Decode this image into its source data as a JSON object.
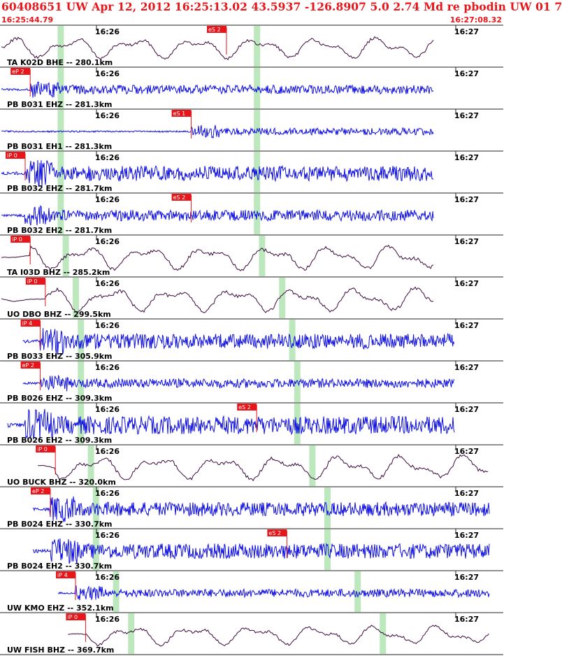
{
  "header": {
    "title": "60408651 UW Apr 12, 2012 16:25:13.02   43.5937 -126.8907  5.0 2.74 Md re pbodin UW 01    7",
    "start_time": "16:25:44.79",
    "end_time": "16:27:08.32"
  },
  "minute_labels": [
    "16:26",
    "16:27"
  ],
  "colors": {
    "header_text": "#e8161a",
    "pick_flag": "#e8161a",
    "trace_broadband": "#3a0a3a",
    "trace_shortperiod": "#1010e0",
    "window_marker": "#bde8bd",
    "grid": "#222222"
  },
  "traces": [
    {
      "label": "TA K02D BHE -- 280.1km",
      "kind": "broadband",
      "pick": {
        "label": "eS 2",
        "time": 0.45
      },
      "first_arrival": 0.0,
      "windows": [
        0.12,
        0.51
      ],
      "amp": 0.7
    },
    {
      "label": "PB B031 EHZ -- 281.3km",
      "kind": "shortperiod",
      "pick": {
        "label": "eP 2",
        "time": 0.06
      },
      "first_arrival": 0.06,
      "windows": [
        0.12,
        0.51
      ],
      "amp": 0.45
    },
    {
      "label": "PB B031 EH1 -- 281.3km",
      "kind": "shortperiod",
      "pick": {
        "label": "eS 1",
        "time": 0.38
      },
      "first_arrival": 0.38,
      "windows": [
        0.12,
        0.51
      ],
      "amp": 0.35
    },
    {
      "label": "PB B032 EHZ -- 281.7km",
      "kind": "shortperiod",
      "pick": {
        "label": "iP 0",
        "time": 0.05
      },
      "first_arrival": 0.05,
      "windows": [
        0.12,
        0.51
      ],
      "amp": 0.75
    },
    {
      "label": "PB B032 EH2 -- 281.7km",
      "kind": "shortperiod",
      "pick": {
        "label": "eS 2",
        "time": 0.38
      },
      "first_arrival": 0.05,
      "windows": [
        0.12,
        0.51
      ],
      "amp": 0.55
    },
    {
      "label": "TA I03D BHZ -- 285.2km",
      "kind": "broadband",
      "pick": {
        "label": "iP 0",
        "time": 0.06
      },
      "first_arrival": 0.06,
      "windows": [
        0.13,
        0.52
      ],
      "amp": 0.8
    },
    {
      "label": "UO DBO BHZ -- 299.5km",
      "kind": "broadband",
      "pick": {
        "label": "iP 0",
        "time": 0.09
      },
      "first_arrival": 0.09,
      "windows": [
        0.15,
        0.56
      ],
      "amp": 0.8
    },
    {
      "label": "PB B033 EHZ -- 305.9km",
      "kind": "shortperiod",
      "pick": {
        "label": "iP 4",
        "time": 0.08
      },
      "first_arrival": 0.08,
      "windows": [
        0.16,
        0.58
      ],
      "amp": 0.75
    },
    {
      "label": "PB B026 EHZ -- 309.3km",
      "kind": "shortperiod",
      "pick": {
        "label": "eP 2",
        "time": 0.08
      },
      "first_arrival": 0.08,
      "windows": [
        0.16,
        0.59
      ],
      "amp": 0.45
    },
    {
      "label": "PB B026 EH2 -- 309.3km",
      "kind": "shortperiod",
      "pick": {
        "label": "eS 2",
        "time": 0.51
      },
      "first_arrival": 0.05,
      "windows": [
        0.16,
        0.59
      ],
      "amp": 0.9
    },
    {
      "label": "UO BUCK BHZ -- 320.0km",
      "kind": "broadband",
      "pick": {
        "label": "iP 0",
        "time": 0.11
      },
      "first_arrival": 0.11,
      "windows": [
        0.18,
        0.62
      ],
      "amp": 0.8
    },
    {
      "label": "PB B024 EHZ -- 330.7km",
      "kind": "shortperiod",
      "pick": {
        "label": "eP 2",
        "time": 0.1
      },
      "first_arrival": 0.1,
      "windows": [
        0.19,
        0.65
      ],
      "amp": 0.7
    },
    {
      "label": "PB B024 EH2 -- 330.7km",
      "kind": "shortperiod",
      "pick": {
        "label": "eS 2",
        "time": 0.57
      },
      "first_arrival": 0.1,
      "windows": [
        0.19,
        0.65
      ],
      "amp": 0.75
    },
    {
      "label": "UW KMO EHZ -- 352.1km",
      "kind": "shortperiod",
      "pick": {
        "label": "iP 4",
        "time": 0.15
      },
      "first_arrival": 0.15,
      "windows": [
        0.23,
        0.71
      ],
      "amp": 0.4
    },
    {
      "label": "UW FISH BHZ -- 369.7km",
      "kind": "broadband",
      "pick": {
        "label": "iP 0",
        "time": 0.17
      },
      "first_arrival": 0.17,
      "windows": [
        0.26,
        0.76
      ],
      "amp": 0.65
    }
  ]
}
